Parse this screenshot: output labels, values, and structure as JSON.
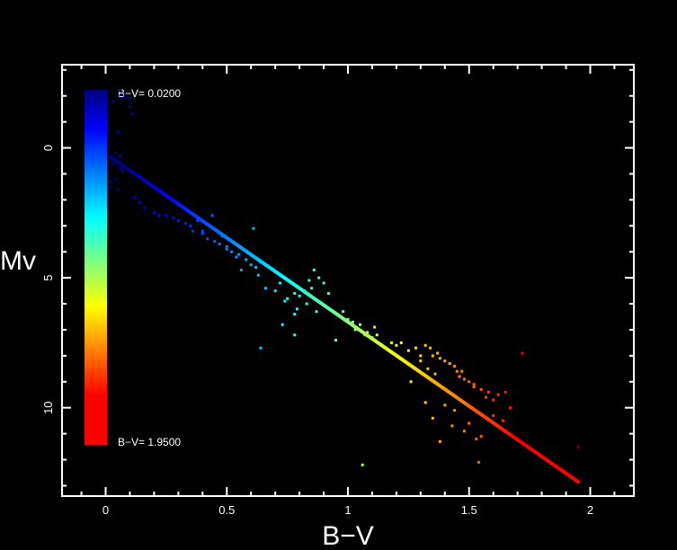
{
  "chart_data": {
    "type": "scatter",
    "title": "",
    "xlabel": "B−V",
    "ylabel": "Mv",
    "xlim": [
      -0.18,
      2.18
    ],
    "ylim": [
      13.4,
      -3.2
    ],
    "y_inverted": true,
    "xticks": [
      0,
      0.5,
      1,
      1.5,
      2
    ],
    "xtick_labels": [
      "0",
      "0.5",
      "1",
      "1.5",
      "2"
    ],
    "yticks": [
      0,
      5,
      10
    ],
    "ytick_labels": [
      "0",
      "5",
      "10"
    ],
    "grid": false,
    "background": "#000000",
    "axis_color": "#ffffff",
    "colormap": "jet",
    "colorbar": {
      "min_label": "B−V= 0.0200",
      "max_label": "B−V= 1.9500",
      "min": 0.02,
      "max": 1.95,
      "orientation": "vertical",
      "placement": "inside-left"
    },
    "fit_line": {
      "x": [
        0.02,
        1.95
      ],
      "y": [
        0.35,
        12.85
      ],
      "color_by": "x"
    },
    "series": [
      {
        "color_by": "x",
        "x": [
          0.02,
          0.03,
          0.05,
          0.06,
          0.07,
          0.08,
          0.1,
          0.11,
          0.1,
          0.03,
          0.04,
          0.05,
          0.06,
          0.04,
          0.05,
          0.07,
          0.06,
          0.02,
          0.04,
          0.12,
          0.14,
          0.16,
          0.2,
          0.22,
          0.25,
          0.28,
          0.3,
          0.33,
          0.35,
          0.36,
          0.38,
          0.4,
          0.42,
          0.45,
          0.47,
          0.5,
          0.52,
          0.55,
          0.58,
          0.6,
          0.62,
          0.63,
          0.64,
          0.61,
          0.56,
          0.54,
          0.5,
          0.48,
          0.44,
          0.4,
          0.66,
          0.7,
          0.72,
          0.75,
          0.78,
          0.8,
          0.82,
          0.84,
          0.86,
          0.88,
          0.9,
          0.92,
          0.74,
          0.79,
          0.83,
          0.87,
          0.85,
          0.78,
          0.73,
          0.98,
          1.0,
          1.02,
          1.05,
          1.08,
          1.1,
          1.12,
          1.11,
          1.07,
          1.03,
          0.95,
          1.18,
          1.2,
          1.22,
          1.25,
          1.28,
          1.3,
          1.32,
          1.34,
          1.35,
          1.37,
          1.38,
          1.4,
          1.42,
          1.44,
          1.45,
          1.46,
          1.48,
          1.5,
          1.52,
          1.55,
          1.58,
          1.6,
          1.62,
          1.65,
          1.67,
          1.3,
          1.33,
          1.36,
          1.42,
          1.47,
          1.52,
          1.57,
          1.6,
          1.64,
          1.4,
          1.44,
          1.5,
          1.55,
          1.43,
          1.48,
          1.38,
          1.35,
          1.32,
          1.26,
          1.72,
          1.95,
          0.64,
          1.06,
          1.54,
          0.78,
          1.53
        ],
        "y": [
          1.5,
          -1.8,
          -2.0,
          -2.2,
          -1.9,
          -2.0,
          -1.6,
          -1.3,
          -1.9,
          0.6,
          1.2,
          1.6,
          0.8,
          0.2,
          -0.6,
          0.9,
          0.3,
          1.3,
          0.5,
          1.9,
          2.1,
          2.3,
          2.5,
          2.6,
          2.6,
          2.7,
          2.8,
          2.9,
          3.0,
          3.2,
          2.8,
          3.3,
          3.5,
          3.6,
          3.7,
          3.9,
          4.0,
          4.1,
          4.3,
          4.5,
          4.6,
          4.9,
          4.4,
          3.1,
          4.7,
          4.2,
          3.8,
          3.4,
          2.6,
          3.2,
          5.4,
          5.5,
          5.2,
          5.8,
          5.6,
          5.7,
          5.5,
          5.1,
          4.7,
          5.0,
          5.2,
          5.6,
          5.9,
          6.2,
          6.0,
          6.3,
          5.4,
          6.4,
          6.8,
          6.3,
          6.6,
          6.7,
          6.8,
          7.1,
          7.3,
          7.2,
          6.9,
          7.2,
          7.0,
          7.4,
          7.5,
          7.6,
          7.5,
          7.8,
          7.7,
          8.0,
          7.6,
          7.7,
          8.0,
          7.9,
          8.1,
          8.2,
          8.3,
          8.4,
          8.6,
          8.8,
          8.9,
          9.0,
          9.1,
          9.3,
          9.4,
          9.7,
          9.5,
          9.4,
          10.0,
          8.2,
          8.5,
          8.7,
          8.3,
          8.6,
          9.2,
          9.6,
          10.3,
          10.5,
          9.9,
          10.1,
          10.6,
          11.1,
          10.7,
          10.9,
          11.3,
          10.4,
          9.8,
          9.0,
          7.9,
          11.5,
          7.7,
          12.2,
          12.1,
          7.2,
          11.2
        ]
      }
    ]
  }
}
